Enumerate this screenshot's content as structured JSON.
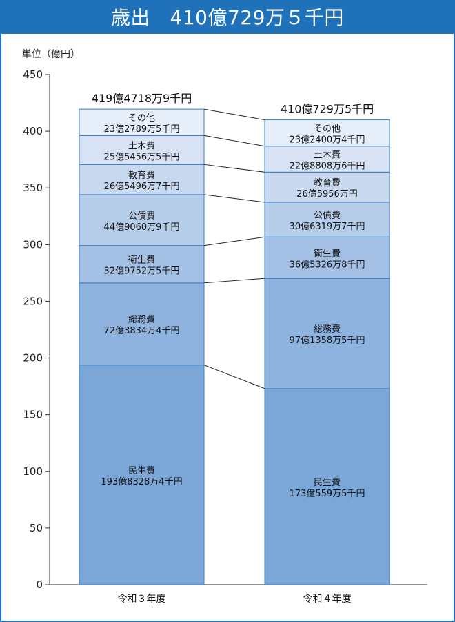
{
  "title": "歳出　410億729万５千円",
  "unit_label": "単位（億円）",
  "chart_data": {
    "type": "bar",
    "stacked": true,
    "ylim": [
      0,
      450
    ],
    "yticks": [
      0,
      50,
      100,
      150,
      200,
      250,
      300,
      350,
      400,
      450
    ],
    "categories": [
      "令和３年度",
      "令和４年度"
    ],
    "totals": [
      "419億4718万9千円",
      "410億729万5千円"
    ],
    "total_values": [
      419.47189,
      410.07295
    ],
    "series": [
      {
        "name": "民生費",
        "values": [
          193.83284,
          173.05595
        ],
        "labels": [
          "193億8328万4千円",
          "173億559万5千円"
        ],
        "color": "#7ba7d8"
      },
      {
        "name": "総務費",
        "values": [
          72.38344,
          97.13585
        ],
        "labels": [
          "72億3834万4千円",
          "97億1358万5千円"
        ],
        "color": "#8fb3df"
      },
      {
        "name": "衛生費",
        "values": [
          32.97525,
          36.53268
        ],
        "labels": [
          "32億9752万5千円",
          "36億5326万8千円"
        ],
        "color": "#a4c0e5"
      },
      {
        "name": "公債費",
        "values": [
          44.90609,
          30.63197
        ],
        "labels": [
          "44億9060万9千円",
          "30億6319万7千円"
        ],
        "color": "#b6cdea"
      },
      {
        "name": "教育費",
        "values": [
          26.54967,
          26.5956
        ],
        "labels": [
          "26億5496万7千円",
          "26億5956万円"
        ],
        "color": "#c8d9f0"
      },
      {
        "name": "土木費",
        "values": [
          25.54565,
          22.88086
        ],
        "labels": [
          "25億5456万5千円",
          "22億8808万6千円"
        ],
        "color": "#d7e3f4"
      },
      {
        "name": "その他",
        "values": [
          23.27895,
          23.24004
        ],
        "labels": [
          "23億2789万5千円",
          "23億2400万4千円"
        ],
        "color": "#e6eef9"
      }
    ],
    "colors": {
      "title_bg": "#1f72b9",
      "bar_border": "#3a7cc4"
    }
  }
}
